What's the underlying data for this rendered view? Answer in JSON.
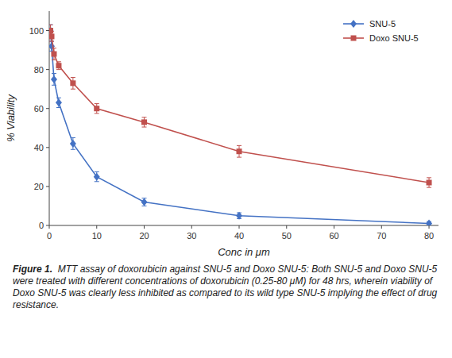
{
  "chart_data": {
    "type": "line",
    "x_label": "Conc in μm",
    "y_label": "% Viability",
    "x": [
      0.25,
      0.5,
      1,
      2,
      5,
      10,
      20,
      40,
      80
    ],
    "series": [
      {
        "name": "SNU-5",
        "color": "#4472C4",
        "marker": "diamond",
        "values": [
          100,
          92,
          75,
          63,
          42,
          25,
          12,
          5,
          1
        ],
        "errors": [
          3,
          2.5,
          3,
          2.5,
          3,
          2.5,
          2,
          1.5,
          1
        ]
      },
      {
        "name": "Doxo SNU-5",
        "color": "#C0504D",
        "marker": "square",
        "values": [
          100,
          97,
          88,
          82,
          73,
          60,
          53,
          38,
          22
        ],
        "errors": [
          3,
          2.5,
          3,
          2,
          3,
          2.5,
          2.5,
          3,
          2.5
        ]
      }
    ],
    "xlim": [
      0,
      82
    ],
    "ylim": [
      0,
      110
    ],
    "xticks": [
      0,
      10,
      20,
      30,
      40,
      50,
      60,
      70,
      80
    ],
    "yticks": [
      0,
      20,
      40,
      60,
      80,
      100
    ],
    "legend": "upper right",
    "caption_title": "Figure 1.",
    "caption": "MTT assay of doxorubicin against SNU-5 and Doxo SNU-5: Both SNU-5 and Doxo SNU-5 were treated with different concentrations of doxorubicin (0.25-80 μM) for 48 hrs, wherein viability of Doxo SNU-5 was clearly less inhibited as compared to its wild type SNU-5 implying the effect of drug resistance."
  }
}
